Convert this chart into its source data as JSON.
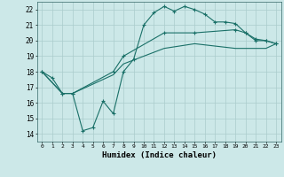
{
  "title": "",
  "xlabel": "Humidex (Indice chaleur)",
  "xlim": [
    -0.5,
    23.5
  ],
  "ylim": [
    13.5,
    22.5
  ],
  "xtick_labels": [
    "0",
    "1",
    "2",
    "3",
    "4",
    "5",
    "6",
    "7",
    "8",
    "9",
    "10",
    "11",
    "12",
    "13",
    "14",
    "15",
    "16",
    "17",
    "18",
    "19",
    "20",
    "21",
    "22",
    "23"
  ],
  "ytick_labels": [
    "14",
    "15",
    "16",
    "17",
    "18",
    "19",
    "20",
    "21",
    "22"
  ],
  "background_color": "#cce8e8",
  "grid_color": "#aacccc",
  "line_color": "#1a7068",
  "line1_x": [
    0,
    1,
    2,
    3,
    4,
    5,
    6,
    7,
    8,
    9,
    10,
    11,
    12,
    13,
    14,
    15,
    16,
    17,
    18,
    19,
    20,
    21,
    22,
    23
  ],
  "line1_y": [
    18.0,
    17.6,
    16.6,
    16.6,
    14.2,
    14.4,
    16.1,
    15.3,
    18.0,
    18.8,
    21.0,
    21.8,
    22.2,
    21.9,
    22.2,
    22.0,
    21.7,
    21.2,
    21.2,
    21.1,
    20.5,
    20.0,
    20.0,
    19.8
  ],
  "line2_x": [
    0,
    2,
    3,
    7,
    8,
    12,
    15,
    19,
    20,
    21,
    22,
    23
  ],
  "line2_y": [
    18.0,
    16.6,
    16.6,
    18.0,
    19.0,
    20.5,
    20.5,
    20.7,
    20.5,
    20.1,
    20.0,
    19.8
  ],
  "line3_x": [
    0,
    2,
    3,
    7,
    8,
    12,
    15,
    19,
    20,
    21,
    22,
    23
  ],
  "line3_y": [
    18.0,
    16.6,
    16.6,
    17.8,
    18.5,
    19.5,
    19.8,
    19.5,
    19.5,
    19.5,
    19.5,
    19.8
  ]
}
